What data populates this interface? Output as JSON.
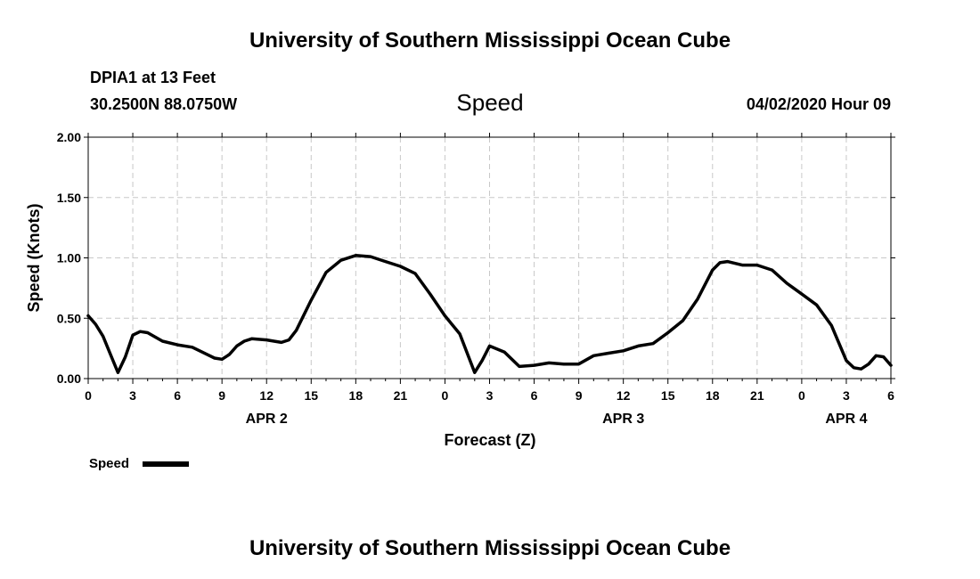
{
  "header": {
    "title": "University of Southern Mississippi Ocean Cube",
    "station": "DPIA1 at 13 Feet",
    "coords": "30.2500N 88.0750W",
    "variable": "Speed",
    "datetime": "04/02/2020 Hour 09"
  },
  "footer": {
    "title": "University of Southern Mississippi Ocean Cube"
  },
  "legend": {
    "label": "Speed"
  },
  "chart_data": {
    "type": "line",
    "title": "Speed",
    "xlabel": "Forecast (Z)",
    "ylabel": "Speed (Knots)",
    "ylim": [
      0,
      2
    ],
    "xlim": [
      0,
      54
    ],
    "grid": true,
    "legend_placement": "bottom-left",
    "line_color": "#000000",
    "y_ticks": [
      "0.00",
      "0.50",
      "1.00",
      "1.50",
      "2.00"
    ],
    "y_tick_values": [
      0,
      0.5,
      1,
      1.5,
      2
    ],
    "x_ticks": [
      "0",
      "3",
      "6",
      "9",
      "12",
      "15",
      "18",
      "21",
      "0",
      "3",
      "6",
      "9",
      "12",
      "15",
      "18",
      "21",
      "0",
      "3",
      "6"
    ],
    "x_tick_hours": [
      0,
      3,
      6,
      9,
      12,
      15,
      18,
      21,
      24,
      27,
      30,
      33,
      36,
      39,
      42,
      45,
      48,
      51,
      54
    ],
    "day_labels": [
      {
        "label": "APR 2",
        "hour": 12
      },
      {
        "label": "APR 3",
        "hour": 36
      },
      {
        "label": "APR 4",
        "hour": 51
      }
    ],
    "series": [
      {
        "name": "Speed",
        "x": [
          0,
          0.5,
          1,
          1.5,
          2,
          2.5,
          3,
          3.5,
          4,
          5,
          6,
          7,
          8,
          8.5,
          9,
          9.5,
          10,
          10.5,
          11,
          12,
          13,
          13.5,
          14,
          15,
          16,
          17,
          18,
          19,
          20,
          21,
          22,
          23,
          24,
          25,
          26,
          26.5,
          27,
          28,
          29,
          30,
          31,
          32,
          33,
          34,
          35,
          36,
          37,
          38,
          39,
          40,
          41,
          42,
          42.5,
          43,
          44,
          45,
          46,
          47,
          48,
          49,
          50,
          51,
          51.5,
          52,
          52.5,
          53,
          53.5,
          54
        ],
        "values": [
          0.52,
          0.45,
          0.35,
          0.2,
          0.05,
          0.18,
          0.36,
          0.39,
          0.38,
          0.31,
          0.28,
          0.26,
          0.2,
          0.17,
          0.16,
          0.2,
          0.27,
          0.31,
          0.33,
          0.32,
          0.3,
          0.32,
          0.4,
          0.65,
          0.88,
          0.98,
          1.02,
          1.01,
          0.97,
          0.93,
          0.87,
          0.7,
          0.52,
          0.37,
          0.05,
          0.15,
          0.27,
          0.22,
          0.1,
          0.11,
          0.13,
          0.12,
          0.12,
          0.19,
          0.21,
          0.23,
          0.27,
          0.29,
          0.38,
          0.48,
          0.66,
          0.9,
          0.96,
          0.97,
          0.94,
          0.94,
          0.9,
          0.79,
          0.7,
          0.61,
          0.44,
          0.15,
          0.09,
          0.08,
          0.12,
          0.19,
          0.18,
          0.11
        ]
      }
    ]
  }
}
